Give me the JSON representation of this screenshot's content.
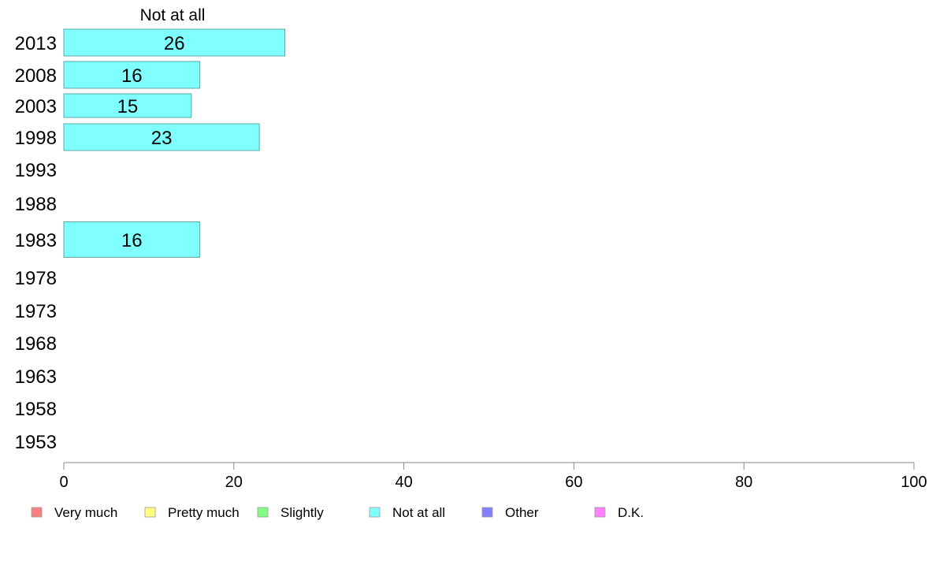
{
  "chart_data": {
    "type": "bar",
    "orientation": "horizontal",
    "categories": [
      "2013",
      "2008",
      "2003",
      "1998",
      "1993",
      "1988",
      "1983",
      "1978",
      "1973",
      "1968",
      "1963",
      "1958",
      "1953"
    ],
    "series": [
      {
        "name": "Not at all",
        "values": [
          26,
          16,
          15,
          23,
          null,
          null,
          16,
          null,
          null,
          null,
          null,
          null,
          null
        ],
        "color": "#80ffff"
      }
    ],
    "xlim": [
      0,
      100
    ],
    "xticks": [
      0,
      20,
      40,
      60,
      80,
      100
    ],
    "grid": false,
    "legend": {
      "placement": "bottom",
      "entries": [
        {
          "label": "Very much",
          "color": "#ff8080"
        },
        {
          "label": "Pretty much",
          "color": "#ffff80"
        },
        {
          "label": "Slightly",
          "color": "#80ff80"
        },
        {
          "label": "Not at all",
          "color": "#80ffff"
        },
        {
          "label": "Other",
          "color": "#8080ff"
        },
        {
          "label": "D.K.",
          "color": "#ff80ff"
        }
      ]
    }
  }
}
